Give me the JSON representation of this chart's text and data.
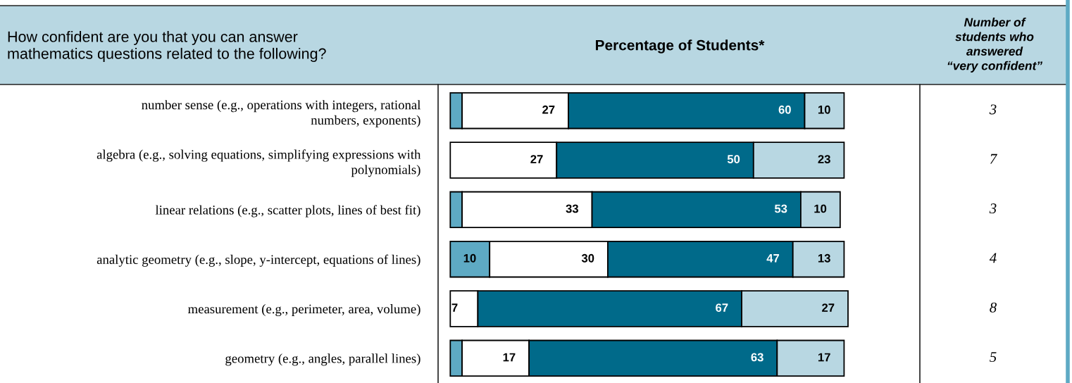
{
  "chart_data": {
    "type": "bar",
    "orientation": "horizontal",
    "stacked": true,
    "title": "Percentage of Students*",
    "categories": [
      "number sense (e.g., operations with integers, rational\nnumbers, exponents)",
      "algebra (e.g., solving equations, simplifying expressions with\npolynomials)",
      "linear relations (e.g., scatter plots, lines of best fit)",
      "analytic geometry (e.g., slope, y-intercept, equations of lines)",
      "measurement (e.g., perimeter, area, volume)",
      "geometry (e.g., angles, parallel lines)"
    ],
    "series": [
      {
        "color": "#5eaac4",
        "values": [
          3,
          null,
          3,
          10,
          null,
          3
        ],
        "value_labels": [
          null,
          null,
          null,
          "10",
          null,
          null
        ]
      },
      {
        "color": "#ffffff",
        "values": [
          27,
          27,
          33,
          30,
          7,
          17
        ],
        "value_labels": [
          "27",
          "27",
          "33",
          "30",
          "7",
          "17"
        ]
      },
      {
        "color": "#006a8a",
        "values": [
          60,
          50,
          53,
          47,
          67,
          63
        ],
        "value_labels": [
          "60",
          "50",
          "53",
          "47",
          "67",
          "63"
        ]
      },
      {
        "color": "#b8d7e2",
        "values": [
          10,
          23,
          10,
          13,
          27,
          17
        ],
        "value_labels": [
          "10",
          "23",
          "10",
          "13",
          "27",
          "17"
        ]
      }
    ],
    "annotations": [
      "How confident are you that you can answer\nmathematics questions related to the following?",
      "Number of\nstudents who\nanswered\n“very confident”",
      "3",
      "7",
      "3",
      "4",
      "8",
      "5"
    ],
    "grid": false,
    "legend": false
  }
}
